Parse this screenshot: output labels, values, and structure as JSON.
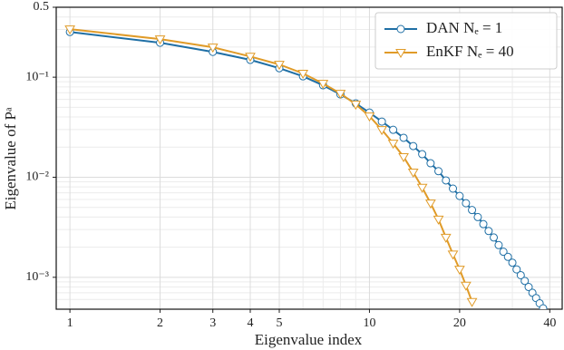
{
  "chart_data": {
    "type": "line",
    "x_label": "Eigenvalue index",
    "y_label": "Eigenvalue of Pᵃ",
    "xscale": "log",
    "yscale": "log",
    "grid": true,
    "legend": "upper right",
    "xlim": [
      0.9,
      44
    ],
    "ylim": [
      0.00048,
      0.5
    ],
    "xticks": [
      1,
      2,
      3,
      4,
      5,
      10,
      20,
      40
    ],
    "xminorticks": [
      6,
      7,
      8,
      9,
      30
    ],
    "yticks": [
      {
        "value": 0.001,
        "label": "10⁻³"
      },
      {
        "value": 0.01,
        "label": "10⁻²"
      },
      {
        "value": 0.1,
        "label": "10⁻¹"
      },
      0.5
    ],
    "yminorticks": [
      0.0006,
      0.0007,
      0.0008,
      0.0009,
      0.002,
      0.003,
      0.004,
      0.005,
      0.006,
      0.007,
      0.008,
      0.009,
      0.02,
      0.03,
      0.04,
      0.05,
      0.06,
      0.07,
      0.08,
      0.09,
      0.2,
      0.3,
      0.4
    ],
    "series": [
      {
        "name": "DAN Nₑ = 1",
        "color": "#1f6fa5",
        "marker": "circle",
        "x": [
          1,
          2,
          3,
          4,
          5,
          6,
          7,
          8,
          9,
          10,
          11,
          12,
          13,
          14,
          15,
          16,
          17,
          18,
          19,
          20,
          21,
          22,
          23,
          24,
          25,
          26,
          27,
          28,
          29,
          30,
          31,
          32,
          33,
          34,
          35,
          36,
          37,
          38
        ],
        "values": [
          0.283,
          0.221,
          0.179,
          0.149,
          0.123,
          0.102,
          0.083,
          0.0673,
          0.0547,
          0.0443,
          0.036,
          0.0298,
          0.0248,
          0.0205,
          0.017,
          0.0138,
          0.0115,
          0.0093,
          0.0077,
          0.0065,
          0.0055,
          0.0047,
          0.004,
          0.0034,
          0.0029,
          0.0025,
          0.0021,
          0.0018,
          0.0016,
          0.0014,
          0.0012,
          0.00105,
          0.00092,
          0.0008,
          0.0007,
          0.00062,
          0.00055,
          0.00049
        ]
      },
      {
        "name": "EnKF Nₑ = 40",
        "color": "#e09b28",
        "marker": "triangle",
        "x": [
          1,
          2,
          3,
          4,
          5,
          6,
          7,
          8,
          9,
          10,
          11,
          12,
          13,
          14,
          15,
          16,
          17,
          18,
          19,
          20,
          21,
          22
        ],
        "values": [
          0.302,
          0.24,
          0.199,
          0.161,
          0.134,
          0.109,
          0.0865,
          0.0687,
          0.0535,
          0.0408,
          0.0298,
          0.0218,
          0.016,
          0.0112,
          0.0079,
          0.0055,
          0.0038,
          0.0025,
          0.0017,
          0.0012,
          0.00083,
          0.00057
        ]
      }
    ]
  }
}
